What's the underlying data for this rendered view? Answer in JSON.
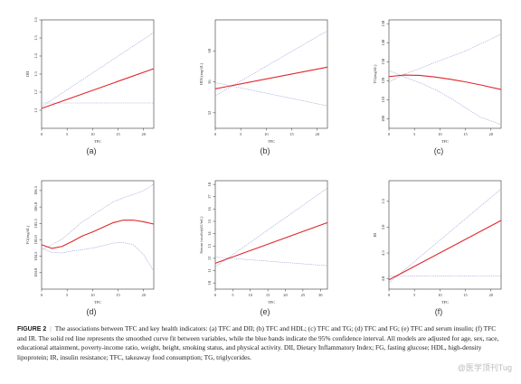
{
  "figure": {
    "number_label": "FIGURE 2",
    "separator": "|",
    "caption_text": "The associations between TFC and key health indicators: (a) TFC and DII; (b) TFC and HDL; (c) TFC and TG; (d) TFC and FG; (e) TFC and serum insulin; (f) TFC and IR. The solid red line represents the smoothed curve fit between variables, while the blue bands indicate the 95% confidence interval. All models are adjusted for age, sex, race, educational attainment, poverty-income ratio, weight, height, smoking status, and physical activity. DII, Dietary Inflammatory Index; FG, fasting glucose; HDL, high-density lipoprotein; IR, insulin resistance; TFC, takeaway food consumption; TG, triglycerides.",
    "watermark": "@医学顶刊Tug"
  },
  "colors": {
    "fit": "#e0262b",
    "ci": "#9aa6d8",
    "axis": "#333333"
  },
  "chart_data": [
    {
      "panel": "(a)",
      "type": "line",
      "xlabel": "TFC",
      "ylabel": "DII",
      "xlim": [
        0,
        22
      ],
      "xticks": [
        0,
        5,
        10,
        15,
        20
      ],
      "ylim": [
        1.0,
        1.6
      ],
      "yticks": [
        1.1,
        1.2,
        1.3,
        1.4,
        1.5,
        1.6
      ],
      "yticklabels": [
        "1.1",
        "1.2",
        "1.3",
        "1.4",
        "1.5",
        "1.6"
      ],
      "x": [
        0,
        22
      ],
      "series": [
        {
          "role": "fit",
          "values": [
            1.11,
            1.33
          ]
        },
        {
          "role": "upper",
          "values": [
            1.12,
            1.53
          ]
        },
        {
          "role": "lower",
          "values": [
            1.14,
            1.14
          ]
        }
      ]
    },
    {
      "panel": "(b)",
      "type": "line",
      "xlabel": "TFC",
      "ylabel": "HDL(mg/dL)",
      "xlim": [
        0,
        22
      ],
      "xticks": [
        0,
        5,
        10,
        15,
        20
      ],
      "ylim": [
        50,
        64
      ],
      "yticks": [
        52,
        56,
        60
      ],
      "yticklabels": [
        "52",
        "56",
        "60"
      ],
      "x": [
        0,
        22
      ],
      "series": [
        {
          "role": "fit",
          "values": [
            55.1,
            57.9
          ]
        },
        {
          "role": "upper",
          "values": [
            54.2,
            62.6
          ]
        },
        {
          "role": "lower",
          "values": [
            55.9,
            52.9
          ]
        }
      ]
    },
    {
      "panel": "(c)",
      "type": "line",
      "xlabel": "TFC",
      "ylabel": "TG(mg/dL)",
      "xlim": [
        0,
        22
      ],
      "xticks": [
        0,
        5,
        10,
        15,
        20
      ],
      "ylim": [
        95,
        152
      ],
      "yticks": [
        100,
        110,
        120,
        130,
        140,
        150
      ],
      "yticklabels": [
        "100",
        "110",
        "120",
        "130",
        "140",
        "150"
      ],
      "x": [
        0,
        3,
        6,
        9,
        12,
        15,
        18,
        22
      ],
      "series": [
        {
          "role": "fit",
          "values": [
            122.2,
            123.0,
            122.8,
            122.0,
            120.8,
            119.4,
            117.8,
            115.4
          ]
        },
        {
          "role": "upper",
          "values": [
            119.4,
            123.4,
            126.4,
            129.6,
            132.6,
            135.6,
            139.4,
            144.5
          ]
        },
        {
          "role": "lower",
          "values": [
            125.4,
            122.0,
            119.0,
            115.4,
            111.0,
            105.8,
            100.8,
            97.0
          ]
        }
      ]
    },
    {
      "panel": "(d)",
      "type": "line",
      "xlabel": "TFC",
      "ylabel": "FG(mg/dL)",
      "xlim": [
        0,
        22
      ],
      "xticks": [
        0,
        5,
        10,
        15,
        20
      ],
      "ylim": [
        103.5,
        106.8
      ],
      "yticks": [
        104.0,
        104.5,
        105.0,
        105.5,
        106.0,
        106.5
      ],
      "yticklabels": [
        "104.0",
        "104.5",
        "105.0",
        "105.5",
        "106.0",
        "106.5"
      ],
      "x": [
        0,
        2,
        4,
        6,
        8,
        10,
        12,
        14,
        16,
        18,
        20,
        22
      ],
      "series": [
        {
          "role": "fit",
          "values": [
            104.85,
            104.74,
            104.8,
            104.95,
            105.12,
            105.24,
            105.38,
            105.52,
            105.6,
            105.6,
            105.55,
            105.48
          ]
        },
        {
          "role": "upper",
          "values": [
            104.7,
            104.85,
            105.02,
            105.28,
            105.55,
            105.75,
            105.95,
            106.15,
            106.28,
            106.38,
            106.5,
            106.7
          ]
        },
        {
          "role": "lower",
          "values": [
            104.75,
            104.62,
            104.6,
            104.66,
            104.7,
            104.75,
            104.82,
            104.9,
            104.92,
            104.85,
            104.55,
            104.05
          ]
        }
      ]
    },
    {
      "panel": "(e)",
      "type": "line",
      "xlabel": "TFC",
      "ylabel": "Serum insulin(uU/mL)",
      "xlim": [
        0,
        32
      ],
      "xticks": [
        0,
        5,
        10,
        15,
        20,
        25,
        30
      ],
      "ylim": [
        9.5,
        18.3
      ],
      "yticks": [
        10,
        11,
        12,
        13,
        14,
        15,
        16,
        17,
        18
      ],
      "yticklabels": [
        "10",
        "11",
        "12",
        "13",
        "14",
        "15",
        "16",
        "17",
        "18"
      ],
      "x": [
        0,
        32
      ],
      "series": [
        {
          "role": "fit",
          "values": [
            11.6,
            14.9
          ]
        },
        {
          "role": "upper",
          "values": [
            11.3,
            17.7
          ]
        },
        {
          "role": "lower",
          "values": [
            12.1,
            11.4
          ]
        }
      ]
    },
    {
      "panel": "(f)",
      "type": "line",
      "xlabel": "TFC",
      "ylabel": "IR",
      "xlim": [
        0,
        22
      ],
      "xticks": [
        0,
        5,
        10,
        15,
        20
      ],
      "ylim": [
        3.8,
        5.9
      ],
      "yticks": [
        4.0,
        4.5,
        5.0,
        5.5
      ],
      "yticklabels": [
        "4.0",
        "4.5",
        "5.0",
        "5.5"
      ],
      "x": [
        0,
        22
      ],
      "series": [
        {
          "role": "fit",
          "values": [
            3.98,
            5.13
          ]
        },
        {
          "role": "upper",
          "values": [
            3.92,
            5.74
          ]
        },
        {
          "role": "lower",
          "values": [
            4.05,
            4.06
          ]
        }
      ]
    }
  ]
}
